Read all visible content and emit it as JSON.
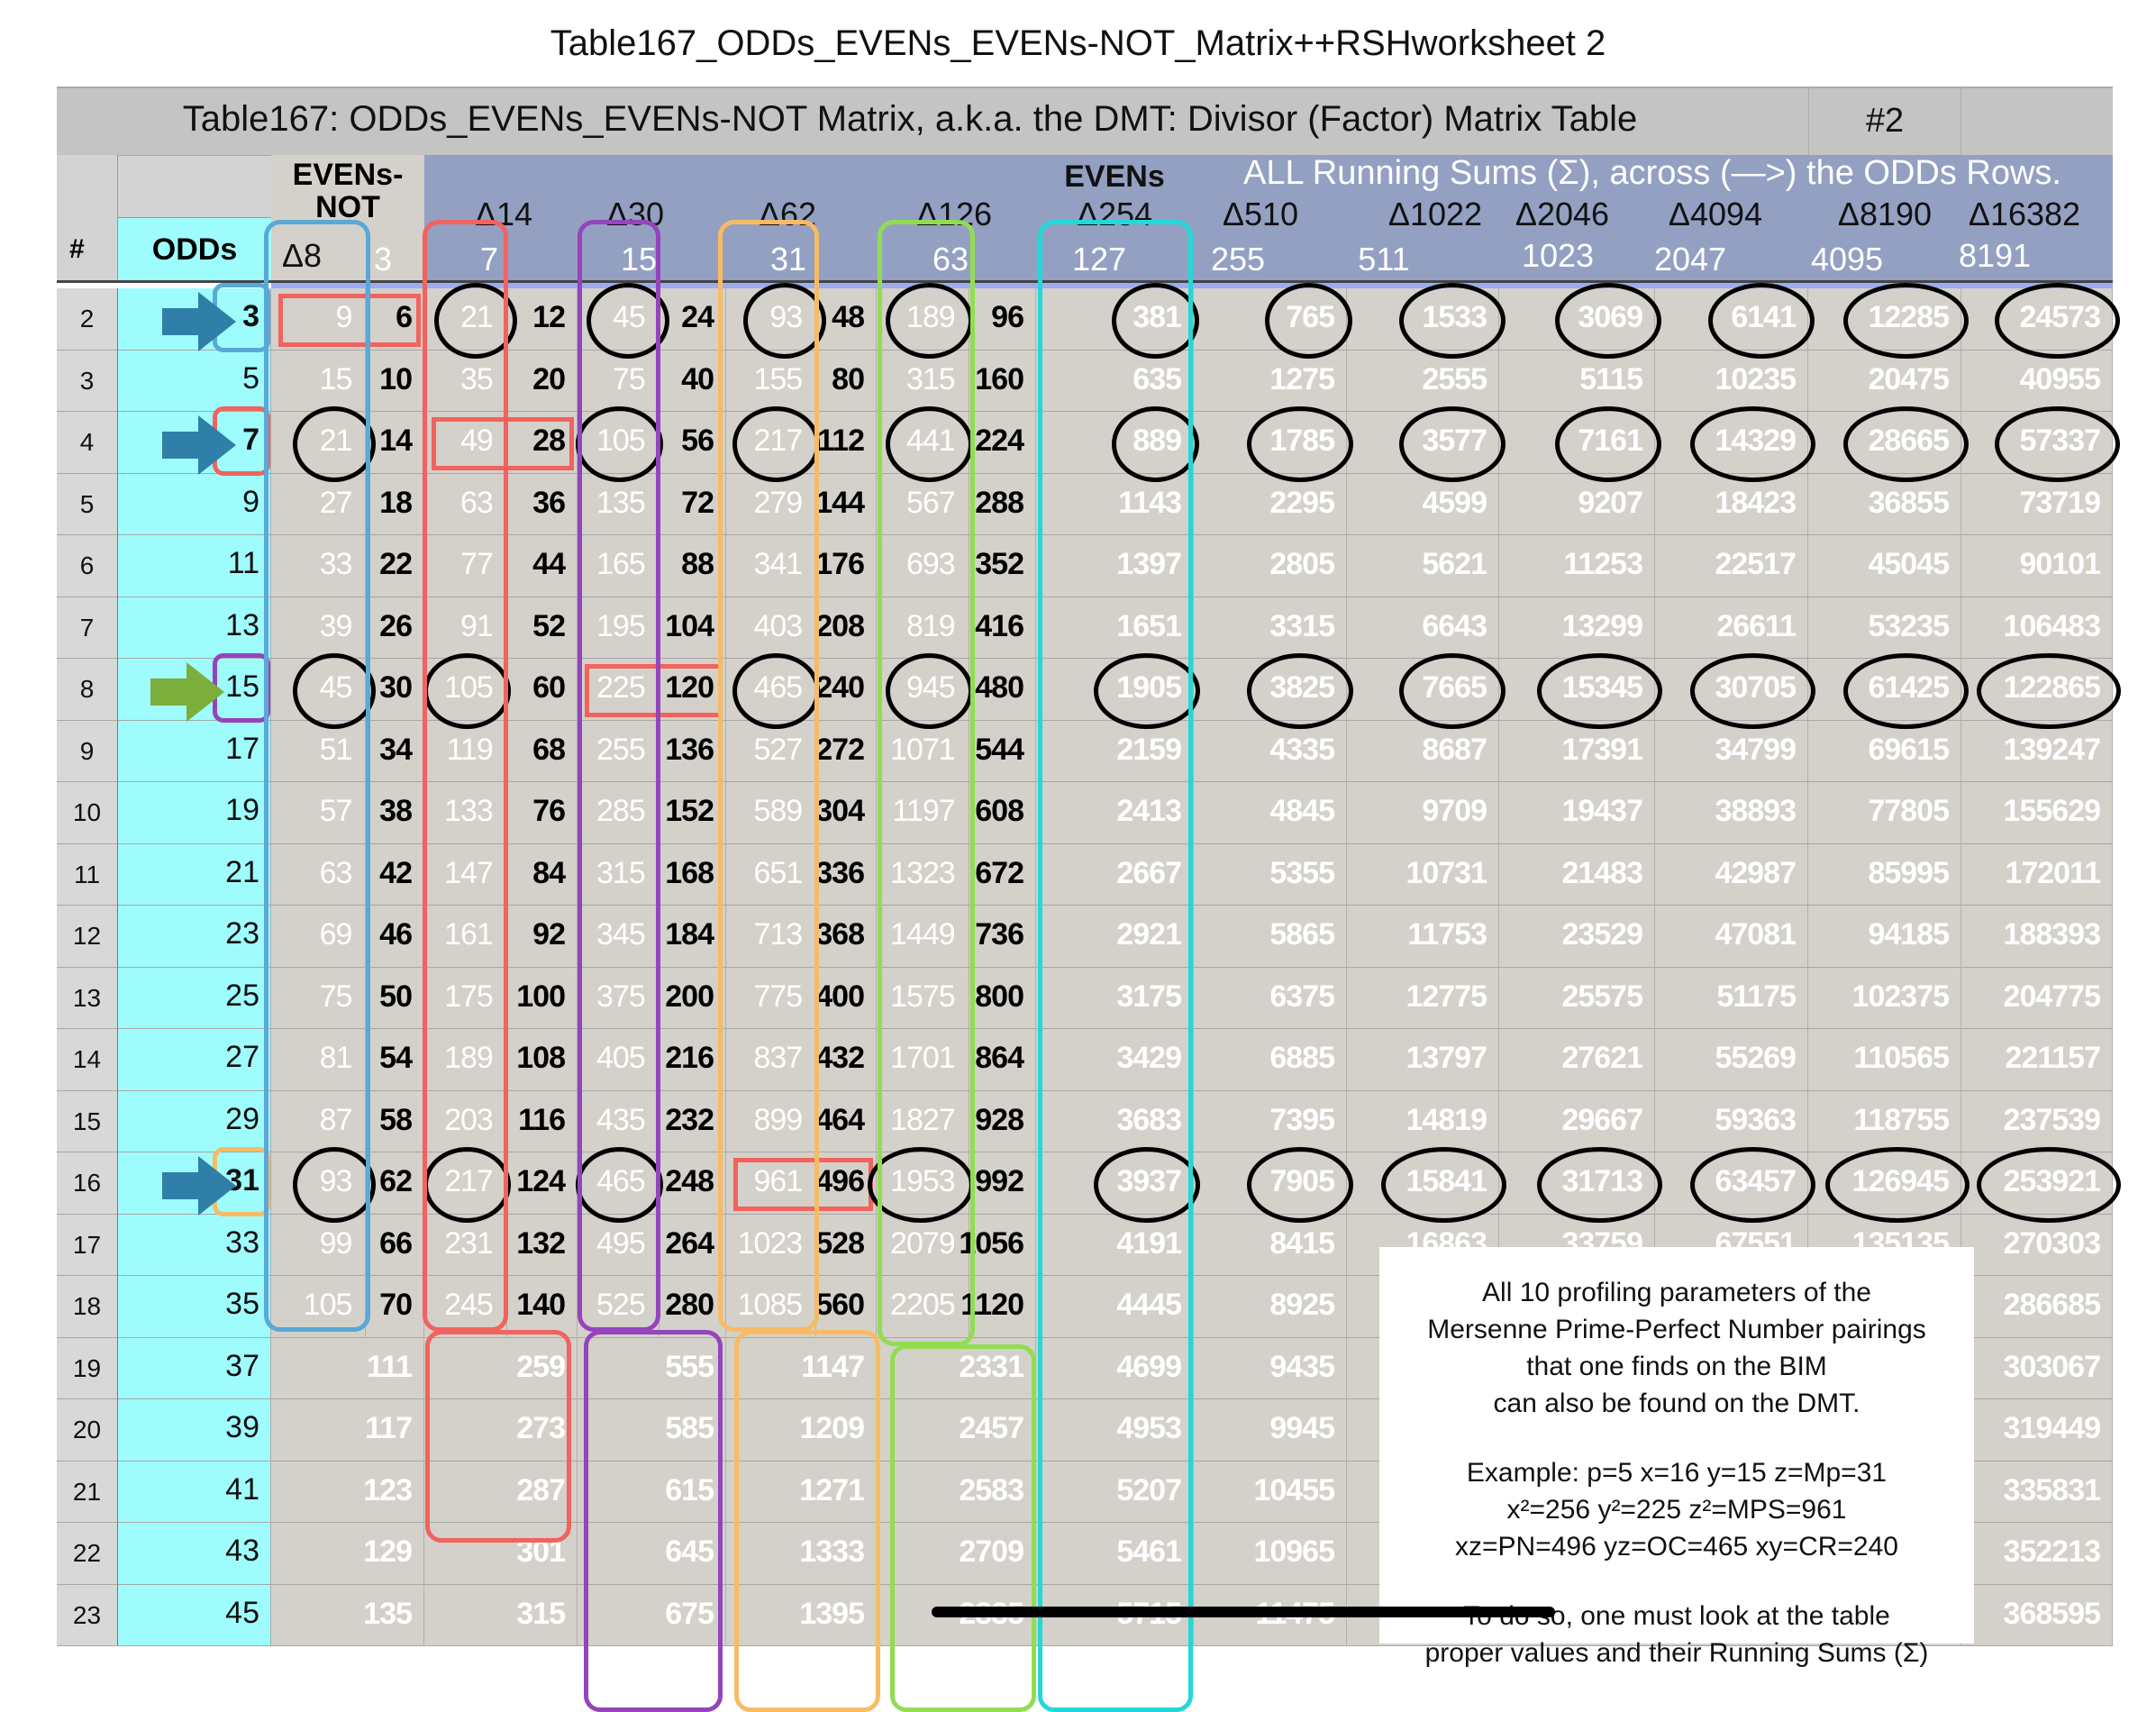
{
  "document_title": "Table167_ODDs_EVENs_EVENs-NOT_Matrix++RSHworksheet 2",
  "header": {
    "table_title": "Table167: ODDs_EVENs_EVENs-NOT Matrix, a.k.a. the DMT: Divisor (Factor) Matrix Table",
    "overlay_title": "ALL Running Sums (Σ), across (—>) the ODDs Rows.",
    "tag": "#2",
    "num_label": "#",
    "odds_label": "ODDs",
    "evens_not_label": "EVENs-NOT",
    "evens_label": "EVENs",
    "deltas": [
      "Δ8",
      "Δ14",
      "Δ30",
      "Δ62",
      "Δ126",
      "Δ254",
      "Δ510",
      "Δ1022",
      "Δ2046",
      "Δ4094",
      "Δ8190",
      "Δ16382"
    ],
    "multipliers": [
      "3",
      "7",
      "15",
      "31",
      "63",
      "127",
      "255",
      "511",
      "1023",
      "2047",
      "4095",
      "8191"
    ]
  },
  "colors": {
    "blue": "#5aa8d8",
    "red": "#f2625e",
    "purple": "#9444bc",
    "orange": "#f8bb64",
    "green": "#92dc52",
    "cyan": "#22d8d8",
    "arrow_blue": "#2f7fa8",
    "arrow_green": "#7cae3c"
  },
  "rows": [
    {
      "num": "2",
      "odd": "3",
      "pairs": [
        [
          "9",
          "6"
        ],
        [
          "21",
          "12"
        ],
        [
          "45",
          "24"
        ],
        [
          "93",
          "48"
        ],
        [
          "189",
          "96"
        ]
      ],
      "big": [
        "381",
        "765",
        "1533",
        "3069",
        "6141",
        "12285",
        "24573"
      ],
      "marker": "blue",
      "arrow": "arrow_blue",
      "boxed": 0,
      "circled": [
        1,
        2,
        3,
        4,
        5,
        6,
        7,
        8,
        9,
        10,
        11
      ]
    },
    {
      "num": "3",
      "odd": "5",
      "pairs": [
        [
          "15",
          "10"
        ],
        [
          "35",
          "20"
        ],
        [
          "75",
          "40"
        ],
        [
          "155",
          "80"
        ],
        [
          "315",
          "160"
        ]
      ],
      "big": [
        "635",
        "1275",
        "2555",
        "5115",
        "10235",
        "20475",
        "40955"
      ]
    },
    {
      "num": "4",
      "odd": "7",
      "pairs": [
        [
          "21",
          "14"
        ],
        [
          "49",
          "28"
        ],
        [
          "105",
          "56"
        ],
        [
          "217",
          "112"
        ],
        [
          "441",
          "224"
        ]
      ],
      "big": [
        "889",
        "1785",
        "3577",
        "7161",
        "14329",
        "28665",
        "57337"
      ],
      "marker": "red",
      "arrow": "arrow_blue",
      "boxed": 1,
      "circled": [
        0,
        2,
        3,
        4,
        5,
        6,
        7,
        8,
        9,
        10,
        11
      ]
    },
    {
      "num": "5",
      "odd": "9",
      "pairs": [
        [
          "27",
          "18"
        ],
        [
          "63",
          "36"
        ],
        [
          "135",
          "72"
        ],
        [
          "279",
          "144"
        ],
        [
          "567",
          "288"
        ]
      ],
      "big": [
        "1143",
        "2295",
        "4599",
        "9207",
        "18423",
        "36855",
        "73719"
      ]
    },
    {
      "num": "6",
      "odd": "11",
      "pairs": [
        [
          "33",
          "22"
        ],
        [
          "77",
          "44"
        ],
        [
          "165",
          "88"
        ],
        [
          "341",
          "176"
        ],
        [
          "693",
          "352"
        ]
      ],
      "big": [
        "1397",
        "2805",
        "5621",
        "11253",
        "22517",
        "45045",
        "90101"
      ]
    },
    {
      "num": "7",
      "odd": "13",
      "pairs": [
        [
          "39",
          "26"
        ],
        [
          "91",
          "52"
        ],
        [
          "195",
          "104"
        ],
        [
          "403",
          "208"
        ],
        [
          "819",
          "416"
        ]
      ],
      "big": [
        "1651",
        "3315",
        "6643",
        "13299",
        "26611",
        "53235",
        "106483"
      ]
    },
    {
      "num": "8",
      "odd": "15",
      "pairs": [
        [
          "45",
          "30"
        ],
        [
          "105",
          "60"
        ],
        [
          "225",
          "120"
        ],
        [
          "465",
          "240"
        ],
        [
          "945",
          "480"
        ]
      ],
      "big": [
        "1905",
        "3825",
        "7665",
        "15345",
        "30705",
        "61425",
        "122865"
      ],
      "marker": "purple",
      "arrow": "arrow_green",
      "boxed": 2,
      "circled": [
        0,
        1,
        3,
        4,
        5,
        6,
        7,
        8,
        9,
        10,
        11
      ]
    },
    {
      "num": "9",
      "odd": "17",
      "pairs": [
        [
          "51",
          "34"
        ],
        [
          "119",
          "68"
        ],
        [
          "255",
          "136"
        ],
        [
          "527",
          "272"
        ],
        [
          "1071",
          "544"
        ]
      ],
      "big": [
        "2159",
        "4335",
        "8687",
        "17391",
        "34799",
        "69615",
        "139247"
      ]
    },
    {
      "num": "10",
      "odd": "19",
      "pairs": [
        [
          "57",
          "38"
        ],
        [
          "133",
          "76"
        ],
        [
          "285",
          "152"
        ],
        [
          "589",
          "304"
        ],
        [
          "1197",
          "608"
        ]
      ],
      "big": [
        "2413",
        "4845",
        "9709",
        "19437",
        "38893",
        "77805",
        "155629"
      ]
    },
    {
      "num": "11",
      "odd": "21",
      "pairs": [
        [
          "63",
          "42"
        ],
        [
          "147",
          "84"
        ],
        [
          "315",
          "168"
        ],
        [
          "651",
          "336"
        ],
        [
          "1323",
          "672"
        ]
      ],
      "big": [
        "2667",
        "5355",
        "10731",
        "21483",
        "42987",
        "85995",
        "172011"
      ]
    },
    {
      "num": "12",
      "odd": "23",
      "pairs": [
        [
          "69",
          "46"
        ],
        [
          "161",
          "92"
        ],
        [
          "345",
          "184"
        ],
        [
          "713",
          "368"
        ],
        [
          "1449",
          "736"
        ]
      ],
      "big": [
        "2921",
        "5865",
        "11753",
        "23529",
        "47081",
        "94185",
        "188393"
      ]
    },
    {
      "num": "13",
      "odd": "25",
      "pairs": [
        [
          "75",
          "50"
        ],
        [
          "175",
          "100"
        ],
        [
          "375",
          "200"
        ],
        [
          "775",
          "400"
        ],
        [
          "1575",
          "800"
        ]
      ],
      "big": [
        "3175",
        "6375",
        "12775",
        "25575",
        "51175",
        "102375",
        "204775"
      ]
    },
    {
      "num": "14",
      "odd": "27",
      "pairs": [
        [
          "81",
          "54"
        ],
        [
          "189",
          "108"
        ],
        [
          "405",
          "216"
        ],
        [
          "837",
          "432"
        ],
        [
          "1701",
          "864"
        ]
      ],
      "big": [
        "3429",
        "6885",
        "13797",
        "27621",
        "55269",
        "110565",
        "221157"
      ]
    },
    {
      "num": "15",
      "odd": "29",
      "pairs": [
        [
          "87",
          "58"
        ],
        [
          "203",
          "116"
        ],
        [
          "435",
          "232"
        ],
        [
          "899",
          "464"
        ],
        [
          "1827",
          "928"
        ]
      ],
      "big": [
        "3683",
        "7395",
        "14819",
        "29667",
        "59363",
        "118755",
        "237539"
      ]
    },
    {
      "num": "16",
      "odd": "31",
      "pairs": [
        [
          "93",
          "62"
        ],
        [
          "217",
          "124"
        ],
        [
          "465",
          "248"
        ],
        [
          "961",
          "496"
        ],
        [
          "1953",
          "992"
        ]
      ],
      "big": [
        "3937",
        "7905",
        "15841",
        "31713",
        "63457",
        "126945",
        "253921"
      ],
      "marker": "orange",
      "arrow": "arrow_blue",
      "boxed": 3,
      "circled": [
        0,
        1,
        2,
        4,
        5,
        6,
        7,
        8,
        9,
        10,
        11
      ]
    },
    {
      "num": "17",
      "odd": "33",
      "pairs": [
        [
          "99",
          "66"
        ],
        [
          "231",
          "132"
        ],
        [
          "495",
          "264"
        ],
        [
          "1023",
          "528"
        ],
        [
          "2079",
          "1056"
        ]
      ],
      "big": [
        "4191",
        "8415",
        "16863",
        "33759",
        "67551",
        "135135",
        "270303"
      ]
    },
    {
      "num": "18",
      "odd": "35",
      "pairs": [
        [
          "105",
          "70"
        ],
        [
          "245",
          "140"
        ],
        [
          "525",
          "280"
        ],
        [
          "1085",
          "560"
        ],
        [
          "2205",
          "1120"
        ]
      ],
      "big": [
        "4445",
        "8925",
        null,
        null,
        null,
        null,
        "286685"
      ]
    },
    {
      "num": "19",
      "odd": "37",
      "singles": [
        "111",
        "259",
        "555",
        "1147",
        "2331"
      ],
      "big": [
        "4699",
        "9435",
        null,
        null,
        null,
        null,
        "303067"
      ]
    },
    {
      "num": "20",
      "odd": "39",
      "singles": [
        "117",
        "273",
        "585",
        "1209",
        "2457"
      ],
      "big": [
        "4953",
        "9945",
        null,
        null,
        null,
        null,
        "319449"
      ]
    },
    {
      "num": "21",
      "odd": "41",
      "singles": [
        "123",
        "287",
        "615",
        "1271",
        "2583"
      ],
      "big": [
        "5207",
        "10455",
        null,
        null,
        null,
        null,
        "335831"
      ]
    },
    {
      "num": "22",
      "odd": "43",
      "singles": [
        "129",
        "301",
        "645",
        "1333",
        "2709"
      ],
      "big": [
        "5461",
        "10965",
        null,
        null,
        null,
        null,
        "352213"
      ]
    },
    {
      "num": "23",
      "odd": "45",
      "singles": [
        "135",
        "315",
        "675",
        "1395",
        "2835"
      ],
      "big": [
        "5715",
        "11475",
        null,
        null,
        null,
        null,
        "368595"
      ]
    }
  ],
  "note": {
    "lines": [
      "All 10 profiling parameters of the",
      "Mersenne Prime-Perfect Number pairings",
      "that one finds on the BIM",
      "can also be found on the DMT."
    ],
    "example": [
      "Example: p=5 x=16 y=15 z=Mp=31",
      "x²=256 y²=225  z²=MPS=961",
      "xz=PN=496 yz=OC=465 xy=CR=240"
    ],
    "footer": [
      "To do so, one must look at the table",
      "proper values and their Running Sums (Σ)"
    ]
  }
}
